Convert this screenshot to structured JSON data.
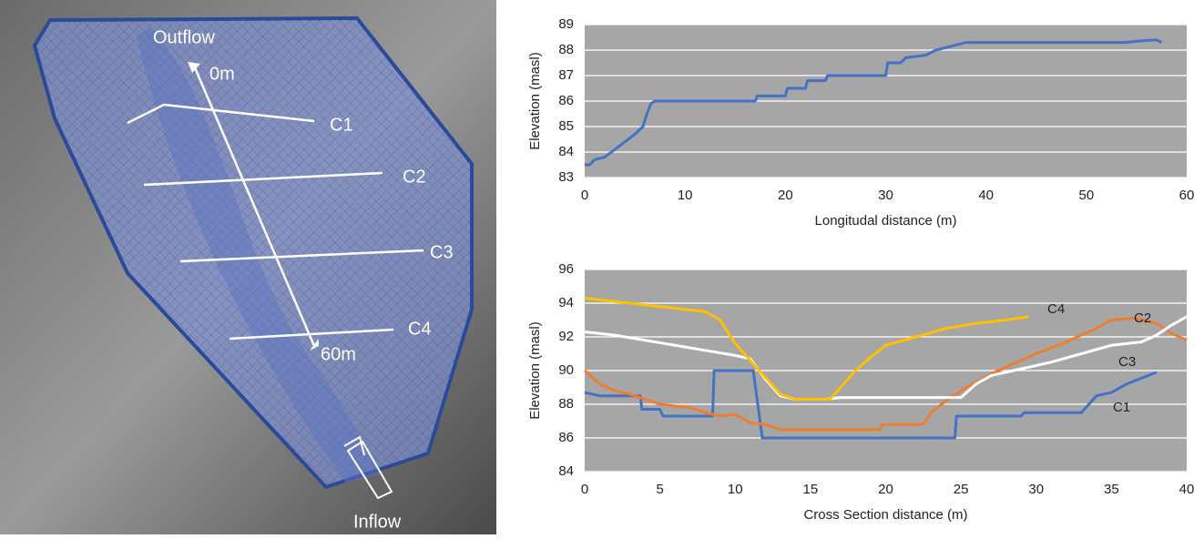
{
  "map": {
    "labels": [
      "Outflow",
      "0m",
      "C1",
      "C2",
      "C3",
      "C4",
      "60m",
      "Inflow"
    ]
  },
  "chart_data": [
    {
      "type": "line",
      "xlabel": "Longitudal distance (m)",
      "ylabel": "Elevation (masl)",
      "xlim": [
        0,
        60
      ],
      "xticks": [
        0,
        10,
        20,
        30,
        40,
        50,
        60
      ],
      "ylim": [
        83,
        89
      ],
      "yticks": [
        83,
        84,
        85,
        86,
        87,
        88,
        89
      ],
      "grid": true,
      "series": [
        {
          "color": "#4472c4",
          "x": [
            0,
            0.5,
            1,
            2,
            3,
            4,
            5,
            5.8,
            6.2,
            6.6,
            7,
            17,
            17.2,
            20,
            20.2,
            22,
            22.2,
            24,
            24.2,
            30,
            30.2,
            31.5,
            32,
            34,
            35,
            36,
            37,
            38,
            54,
            55,
            57,
            57.5
          ],
          "values": [
            83.5,
            83.5,
            83.7,
            83.8,
            84.1,
            84.4,
            84.7,
            85,
            85.5,
            85.9,
            86,
            86,
            86.2,
            86.2,
            86.5,
            86.5,
            86.8,
            86.8,
            87,
            87,
            87.5,
            87.5,
            87.7,
            87.8,
            88,
            88.1,
            88.2,
            88.3,
            88.3,
            88.35,
            88.4,
            88.3
          ]
        }
      ]
    },
    {
      "type": "line",
      "xlabel": "Cross Section distance (m)",
      "ylabel": "Elevation (masl)",
      "xlim": [
        0,
        40
      ],
      "xticks": [
        0,
        5,
        10,
        15,
        20,
        25,
        30,
        35,
        40
      ],
      "ylim": [
        84,
        96
      ],
      "yticks": [
        84,
        86,
        88,
        90,
        92,
        94,
        96
      ],
      "grid": true,
      "series": [
        {
          "name": "C1",
          "color": "#4472c4",
          "x": [
            0,
            1,
            3.7,
            3.8,
            5,
            5.2,
            8.5,
            8.6,
            11.2,
            11.5,
            11.8,
            24.6,
            24.7,
            29,
            29.2,
            33,
            33.5,
            34,
            35,
            36,
            38
          ],
          "values": [
            88.7,
            88.5,
            88.5,
            87.7,
            87.7,
            87.3,
            87.3,
            90,
            90,
            88,
            86,
            86,
            87.3,
            87.3,
            87.5,
            87.5,
            88,
            88.5,
            88.7,
            89.2,
            89.9
          ]
        },
        {
          "name": "C2",
          "color": "#ed7d31",
          "x": [
            0,
            1,
            2,
            3,
            4,
            5,
            7,
            8,
            9,
            10,
            11,
            12,
            13,
            19.6,
            19.8,
            22.5,
            23,
            24,
            25,
            26,
            27,
            28,
            30,
            32,
            34,
            35,
            36.5,
            38,
            39,
            40
          ],
          "values": [
            90,
            89.2,
            88.8,
            88.6,
            88.3,
            88,
            87.8,
            87.5,
            87.3,
            87.4,
            86.9,
            86.8,
            86.5,
            86.5,
            86.8,
            86.8,
            87.5,
            88.2,
            88.8,
            89.3,
            89.8,
            90.2,
            91,
            91.7,
            92.5,
            93,
            93.1,
            92.8,
            92.2,
            91.8
          ]
        },
        {
          "name": "C3",
          "color": "#ffffff",
          "x": [
            0,
            2,
            4,
            6,
            8,
            10,
            11,
            12,
            13,
            14,
            16,
            17,
            25,
            26,
            27,
            29,
            31,
            33,
            35,
            37,
            38,
            39,
            40
          ],
          "values": [
            92.3,
            92.1,
            91.8,
            91.5,
            91.2,
            90.9,
            90.7,
            89.5,
            88.5,
            88.3,
            88.3,
            88.4,
            88.4,
            89.2,
            89.7,
            90.1,
            90.5,
            91,
            91.5,
            91.7,
            92.1,
            92.7,
            93.2
          ]
        },
        {
          "name": "C4",
          "color": "#ffc000",
          "x": [
            0,
            2,
            4,
            6,
            8,
            9,
            10,
            11,
            12,
            13,
            14,
            16.3,
            17,
            18,
            19,
            20,
            22,
            24,
            26,
            28,
            29.5
          ],
          "values": [
            94.3,
            94.1,
            93.9,
            93.7,
            93.5,
            93,
            91.6,
            90.6,
            89.6,
            88.6,
            88.3,
            88.3,
            89,
            90,
            90.8,
            91.5,
            92,
            92.5,
            92.8,
            93,
            93.2
          ]
        }
      ]
    }
  ]
}
